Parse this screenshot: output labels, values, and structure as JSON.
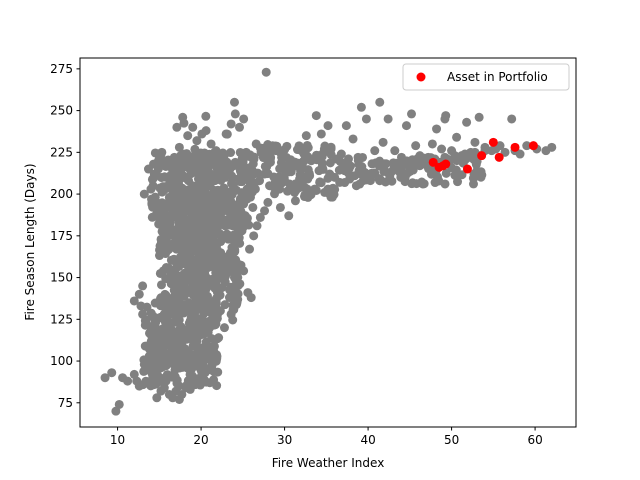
{
  "chart_data": {
    "type": "scatter",
    "xlabel": "Fire Weather Index",
    "ylabel": "Fire Season Length (Days)",
    "xlim": [
      5.5,
      64.9
    ],
    "ylim": [
      60.5,
      281.5
    ],
    "x_ticks": [
      10,
      20,
      30,
      40,
      50,
      60
    ],
    "y_ticks": [
      75,
      100,
      125,
      150,
      175,
      200,
      225,
      250,
      275
    ],
    "grid": false,
    "legend_placement": "top-right",
    "series": [
      {
        "color": "#808080",
        "points": [
          [
            8.5,
            90
          ],
          [
            9.3,
            93
          ],
          [
            9.8,
            70
          ],
          [
            10.2,
            74
          ],
          [
            10.6,
            90
          ],
          [
            11.2,
            88
          ],
          [
            12.0,
            92
          ],
          [
            12.6,
            85
          ],
          [
            12.3,
            88
          ],
          [
            12.0,
            136
          ],
          [
            12.6,
            140
          ],
          [
            12.8,
            133
          ],
          [
            13.0,
            145
          ],
          [
            13.2,
            98
          ],
          [
            13.8,
            103
          ],
          [
            14.2,
            96
          ],
          [
            14.5,
            110
          ],
          [
            14.7,
            78
          ],
          [
            15.1,
            90
          ],
          [
            15.2,
            82
          ],
          [
            15.6,
            84
          ],
          [
            15.8,
            88
          ],
          [
            16.2,
            80
          ],
          [
            16.6,
            78
          ],
          [
            17.0,
            82
          ],
          [
            17.4,
            77
          ],
          [
            17.7,
            80
          ],
          [
            18.2,
            84
          ],
          [
            18.7,
            83
          ],
          [
            19.2,
            86
          ],
          [
            19.8,
            88
          ],
          [
            20.1,
            92
          ],
          [
            13.0,
            128
          ],
          [
            13.5,
            122
          ],
          [
            14.0,
            118
          ],
          [
            14.5,
            124
          ],
          [
            15.2,
            115
          ],
          [
            16.0,
            137
          ],
          [
            16.4,
            110
          ],
          [
            13.2,
            200
          ],
          [
            13.7,
            215
          ],
          [
            14.0,
            203
          ],
          [
            14.4,
            212
          ],
          [
            14.9,
            220
          ],
          [
            15.3,
            225
          ],
          [
            15.8,
            210
          ],
          [
            16.3,
            218
          ],
          [
            16.8,
            222
          ],
          [
            17.1,
            240
          ],
          [
            17.4,
            228
          ],
          [
            17.8,
            246
          ],
          [
            18.4,
            235
          ],
          [
            19.0,
            240
          ],
          [
            19.5,
            232
          ],
          [
            20.1,
            236
          ],
          [
            20.6,
            238
          ],
          [
            21.2,
            230
          ],
          [
            21.8,
            226
          ],
          [
            22.3,
            222
          ],
          [
            23.0,
            236
          ],
          [
            23.6,
            242
          ],
          [
            24.0,
            255
          ],
          [
            24.1,
            248
          ],
          [
            24.6,
            240
          ],
          [
            25.1,
            245
          ],
          [
            25.4,
            225
          ],
          [
            26.0,
            222
          ],
          [
            26.6,
            230
          ],
          [
            27.2,
            225
          ],
          [
            27.8,
            273
          ],
          [
            28.3,
            221
          ],
          [
            29.0,
            226
          ],
          [
            29.6,
            224
          ],
          [
            30.2,
            222
          ],
          [
            30.8,
            220
          ],
          [
            31.4,
            218
          ],
          [
            32.0,
            216
          ],
          [
            32.6,
            235
          ],
          [
            33.2,
            220
          ],
          [
            33.8,
            247
          ],
          [
            34.4,
            236
          ],
          [
            35.2,
            241
          ],
          [
            36.2,
            221
          ],
          [
            36.8,
            224
          ],
          [
            37.4,
            241
          ],
          [
            38.2,
            233
          ],
          [
            38.8,
            222
          ],
          [
            39.2,
            252
          ],
          [
            39.8,
            245
          ],
          [
            40.8,
            226
          ],
          [
            41.4,
            255
          ],
          [
            41.8,
            231
          ],
          [
            42.4,
            245
          ],
          [
            43.2,
            226
          ],
          [
            44.0,
            222
          ],
          [
            44.6,
            241
          ],
          [
            45.2,
            248
          ],
          [
            45.7,
            229
          ],
          [
            46.2,
            223
          ],
          [
            46.6,
            218
          ],
          [
            47.2,
            222
          ],
          [
            47.7,
            230
          ],
          [
            48.2,
            239
          ],
          [
            48.8,
            227
          ],
          [
            49.2,
            245
          ],
          [
            49.3,
            247
          ],
          [
            50.0,
            226
          ],
          [
            50.6,
            234
          ],
          [
            51.2,
            223
          ],
          [
            51.8,
            243
          ],
          [
            52.3,
            225
          ],
          [
            52.8,
            231
          ],
          [
            53.3,
            246
          ],
          [
            54.0,
            228
          ],
          [
            54.8,
            226
          ],
          [
            55.3,
            227
          ],
          [
            55.8,
            229
          ],
          [
            56.4,
            225
          ],
          [
            57.2,
            245
          ],
          [
            57.6,
            226
          ],
          [
            58.2,
            224
          ],
          [
            59.0,
            229
          ],
          [
            60.2,
            227
          ],
          [
            61.3,
            226
          ],
          [
            62.0,
            228
          ],
          [
            27.0,
            208
          ],
          [
            27.6,
            212
          ],
          [
            28.2,
            205
          ],
          [
            28.8,
            210
          ],
          [
            29.4,
            203
          ],
          [
            30.0,
            208
          ],
          [
            30.6,
            206
          ],
          [
            31.2,
            201
          ],
          [
            31.8,
            209
          ],
          [
            32.4,
            204
          ],
          [
            33.0,
            211
          ],
          [
            33.6,
            203
          ],
          [
            34.2,
            207
          ],
          [
            34.8,
            201
          ],
          [
            35.4,
            212
          ],
          [
            36.0,
            210
          ],
          [
            36.6,
            207
          ],
          [
            37.2,
            214
          ],
          [
            37.8,
            209
          ],
          [
            38.4,
            211
          ],
          [
            39.0,
            206
          ],
          [
            39.6,
            213
          ],
          [
            40.2,
            210
          ],
          [
            40.8,
            212
          ],
          [
            41.4,
            208
          ],
          [
            42.0,
            214
          ],
          [
            42.6,
            211
          ],
          [
            43.2,
            216
          ],
          [
            43.8,
            213
          ],
          [
            44.4,
            218
          ],
          [
            45.0,
            215
          ],
          [
            45.6,
            219
          ],
          [
            46.2,
            217
          ],
          [
            46.8,
            220
          ],
          [
            47.4,
            218
          ],
          [
            48.0,
            221
          ],
          [
            48.6,
            219
          ],
          [
            49.2,
            222
          ],
          [
            49.8,
            220
          ],
          [
            50.4,
            223
          ],
          [
            51.0,
            221
          ],
          [
            51.6,
            224
          ],
          [
            52.2,
            222
          ],
          [
            52.8,
            225
          ],
          [
            53.4,
            223
          ],
          [
            54.0,
            226
          ],
          [
            29.5,
            192
          ],
          [
            30.5,
            187
          ],
          [
            31.3,
            196
          ],
          [
            32.8,
            198
          ],
          [
            35.2,
            203
          ],
          [
            38.6,
            205
          ],
          [
            20.8,
            165
          ],
          [
            21.3,
            160
          ],
          [
            22.0,
            166
          ],
          [
            22.6,
            158
          ],
          [
            23.4,
            163
          ],
          [
            24.0,
            150
          ],
          [
            24.5,
            156
          ],
          [
            25.1,
            154
          ],
          [
            25.6,
            141
          ],
          [
            26.0,
            138
          ],
          [
            24.3,
            135
          ],
          [
            23.6,
            128
          ],
          [
            22.8,
            120
          ],
          [
            22.1,
            114
          ],
          [
            21.5,
            106
          ],
          [
            20.9,
            101
          ],
          [
            20.3,
            96
          ],
          [
            19.9,
            108
          ],
          [
            19.5,
            112
          ],
          [
            19.1,
            118
          ],
          [
            18.7,
            124
          ],
          [
            18.2,
            130
          ],
          [
            17.7,
            140
          ],
          [
            17.3,
            151
          ],
          [
            16.8,
            160
          ],
          [
            16.3,
            168
          ],
          [
            15.9,
            174
          ],
          [
            15.5,
            180
          ],
          [
            15.1,
            186
          ],
          [
            14.7,
            192
          ],
          [
            14.3,
            196
          ],
          [
            25.8,
            167
          ],
          [
            26.3,
            175
          ],
          [
            26.7,
            181
          ],
          [
            27.1,
            186
          ],
          [
            27.6,
            190
          ],
          [
            28.0,
            195
          ],
          [
            26.2,
            192
          ],
          [
            25.5,
            185
          ],
          [
            24.9,
            178
          ],
          [
            24.3,
            172
          ],
          [
            23.7,
            168
          ],
          [
            23.1,
            176
          ],
          [
            22.5,
            182
          ],
          [
            21.9,
            186
          ],
          [
            21.3,
            190
          ],
          [
            20.7,
            194
          ],
          [
            20.1,
            198
          ],
          [
            19.6,
            202
          ],
          [
            19.0,
            205
          ],
          [
            18.5,
            208
          ],
          [
            17.9,
            210
          ],
          [
            17.3,
            206
          ],
          [
            16.8,
            203
          ],
          [
            16.2,
            198
          ],
          [
            15.7,
            192
          ],
          [
            15.2,
            188
          ],
          [
            22.3,
            210
          ],
          [
            22.9,
            213
          ],
          [
            23.5,
            216
          ],
          [
            24.1,
            219
          ],
          [
            24.7,
            214
          ],
          [
            25.3,
            210
          ],
          [
            25.9,
            206
          ],
          [
            26.5,
            203
          ]
        ],
        "clusters": [
          {
            "x": [
              14.0,
              26.0
            ],
            "y": [
              180,
              225
            ],
            "n": 320,
            "dist": "uniform"
          },
          {
            "x": [
              15.0,
              25.0
            ],
            "y": [
              130,
              200
            ],
            "n": 280,
            "dist": "uniform"
          },
          {
            "x": [
              13.0,
              22.0
            ],
            "y": [
              85,
              135
            ],
            "n": 200,
            "dist": "uniform"
          },
          {
            "x": [
              17.0,
              22.0
            ],
            "y": [
              120,
              200
            ],
            "n": 180,
            "dist": "uniform"
          },
          {
            "x_mean": 19.5,
            "x_sd": 1.8,
            "y_mean": 175,
            "y_sd": 30,
            "n": 160,
            "dist": "normal"
          },
          {
            "x": [
              26.0,
              36.0
            ],
            "y": [
              198,
              230
            ],
            "n": 120,
            "dist": "uniform"
          },
          {
            "x": [
              36.0,
              54.0
            ],
            "y": [
              206,
              222
            ],
            "n": 100,
            "dist": "uniform"
          },
          {
            "x": [
              14.0,
              22.0
            ],
            "y": [
              95,
              120
            ],
            "n": 100,
            "dist": "uniform"
          }
        ]
      },
      {
        "name": "Asset in Portfolio",
        "color": "#ff0000",
        "points": [
          [
            47.8,
            219
          ],
          [
            48.5,
            216
          ],
          [
            49.0,
            217
          ],
          [
            49.3,
            218
          ],
          [
            51.9,
            215
          ],
          [
            53.6,
            223
          ],
          [
            55.0,
            231
          ],
          [
            55.7,
            222
          ],
          [
            57.6,
            228
          ],
          [
            59.8,
            229
          ]
        ]
      }
    ]
  }
}
